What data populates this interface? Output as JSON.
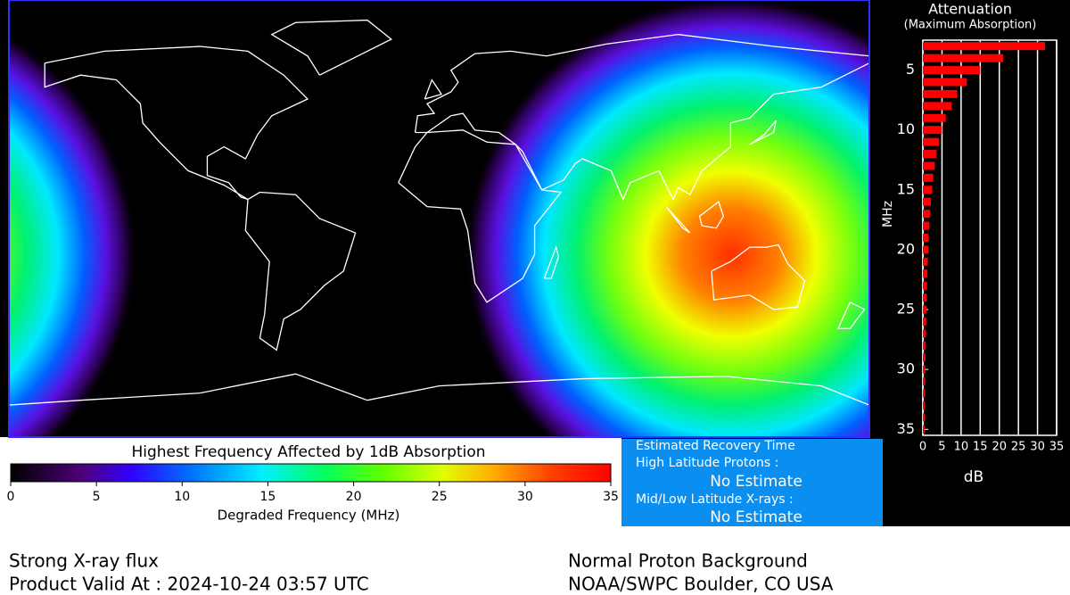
{
  "map": {
    "colorbar": {
      "title": "Highest Frequency Affected by 1dB Absorption",
      "label": "Degraded Frequency (MHz)",
      "lim": [
        0,
        35
      ],
      "ticks": [
        0,
        5,
        10,
        15,
        20,
        25,
        30,
        35
      ]
    }
  },
  "recovery": {
    "title": "Estimated Recovery Time",
    "high_latitude_label": "High Latitude Protons :",
    "high_latitude_value": "No Estimate",
    "mid_low_label": "Mid/Low Latitude X-rays :",
    "mid_low_value": "No Estimate"
  },
  "footer": {
    "xray_status": "Strong X-ray flux",
    "valid_at": "Product Valid At : 2024-10-24 03:57 UTC",
    "proton_status": "Normal Proton Background",
    "source": "NOAA/SWPC Boulder, CO USA"
  },
  "chart_data": {
    "type": "bar",
    "orientation": "horizontal",
    "title": "Attenuation",
    "subtitle": "(Maximum Absorption)",
    "y": [
      3,
      4,
      5,
      6,
      7,
      8,
      9,
      10,
      11,
      12,
      13,
      14,
      15,
      16,
      17,
      18,
      19,
      20,
      21,
      22,
      23,
      24,
      25,
      26,
      27,
      28,
      29,
      30,
      31,
      32,
      33,
      34,
      35
    ],
    "values": [
      32,
      21,
      15,
      11.5,
      9,
      7.5,
      6,
      5,
      4.2,
      3.6,
      3.1,
      2.7,
      2.4,
      2.1,
      1.9,
      1.7,
      1.5,
      1.4,
      1.3,
      1.2,
      1.1,
      1.0,
      0.9,
      0.85,
      0.8,
      0.75,
      0.7,
      0.65,
      0.6,
      0.55,
      0.5,
      0.5,
      0.45
    ],
    "color": "#ff0000",
    "xlabel": "dB",
    "ylabel": "MHz",
    "xlim": [
      0,
      35
    ],
    "xticks": [
      0,
      5,
      10,
      15,
      20,
      25,
      30,
      35
    ],
    "ylim": [
      2.5,
      35.5
    ],
    "yticks": [
      5,
      10,
      15,
      20,
      25,
      30,
      35
    ],
    "grid": true
  }
}
